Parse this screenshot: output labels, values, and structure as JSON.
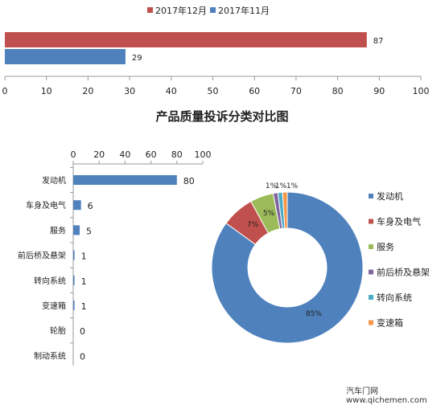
{
  "top_chart": {
    "legend": [
      "2017年12月",
      "2017年11月"
    ],
    "colors": [
      "#c0504d",
      "#4f81bd"
    ],
    "values": [
      87,
      29
    ],
    "x_ticks": [
      "0",
      "10",
      "20",
      "30",
      "40",
      "50",
      "60",
      "70",
      "80",
      "90",
      "100"
    ]
  },
  "title": "产品质量投诉分类对比图",
  "bar_chart": {
    "categories": [
      "发动机",
      "车身及电气",
      "服务",
      "前后桥及悬架",
      "转向系统",
      "变速箱",
      "轮胎",
      "制动系统"
    ],
    "values": [
      80,
      6,
      5,
      1,
      1,
      1,
      0,
      0
    ],
    "x_ticks": [
      "0",
      "20",
      "40",
      "60",
      "80",
      "100"
    ],
    "color": "#4f81bd"
  },
  "donut_chart": {
    "labels": [
      "发动机",
      "车身及电气",
      "服务",
      "前后桥及悬架",
      "转向系统",
      "变速箱"
    ],
    "percent_labels": [
      "85%",
      "7%",
      "5%",
      "1%",
      "1%",
      "1%"
    ],
    "colors": [
      "#4f81bd",
      "#c0504d",
      "#9bbb59",
      "#8064a2",
      "#4bacc6",
      "#f79646"
    ]
  },
  "chart_data": [
    {
      "type": "bar",
      "orientation": "horizontal",
      "series": [
        {
          "name": "2017年12月",
          "values": [
            87
          ]
        },
        {
          "name": "2017年11月",
          "values": [
            29
          ]
        }
      ],
      "xlim": [
        0,
        100
      ],
      "legend": "top"
    },
    {
      "type": "bar",
      "orientation": "horizontal",
      "title": "产品质量投诉分类对比图",
      "categories": [
        "发动机",
        "车身及电气",
        "服务",
        "前后桥及悬架",
        "转向系统",
        "变速箱",
        "轮胎",
        "制动系统"
      ],
      "values": [
        80,
        6,
        5,
        1,
        1,
        1,
        0,
        0
      ],
      "xlim": [
        0,
        100
      ]
    },
    {
      "type": "pie",
      "labels": [
        "发动机",
        "车身及电气",
        "服务",
        "前后桥及悬架",
        "转向系统",
        "变速箱"
      ],
      "values": [
        85,
        7,
        5,
        1,
        1,
        1
      ],
      "legend": "right"
    }
  ],
  "watermark": "汽车门网 www.qichemen.com"
}
